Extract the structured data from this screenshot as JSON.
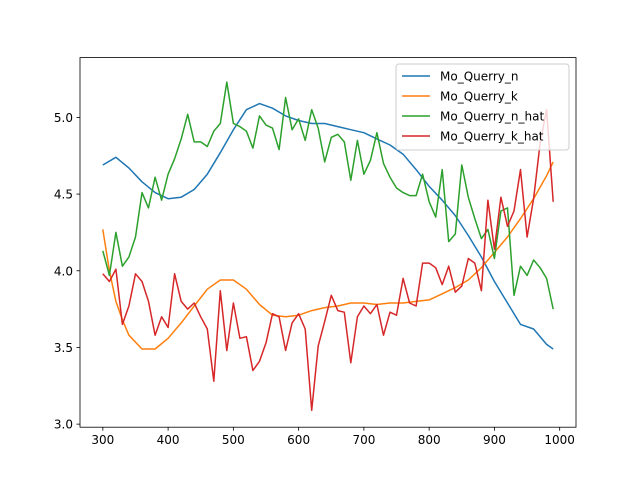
{
  "chart_data": {
    "type": "line",
    "title": "",
    "xlabel": "",
    "ylabel": "",
    "xlim": [
      265,
      1025
    ],
    "ylim": [
      2.98,
      5.39
    ],
    "xticks": [
      300,
      400,
      500,
      600,
      700,
      800,
      900,
      1000
    ],
    "yticks": [
      3.0,
      3.5,
      4.0,
      4.5,
      5.0
    ],
    "xtick_labels": [
      "300",
      "400",
      "500",
      "600",
      "700",
      "800",
      "900",
      "1000"
    ],
    "ytick_labels": [
      "3.0",
      "3.5",
      "4.0",
      "4.5",
      "5.0"
    ],
    "grid": false,
    "legend_position": "upper right",
    "series": [
      {
        "name": "Mo_Querry_n",
        "color": "#1f77b4",
        "x": [
          300,
          320,
          340,
          360,
          380,
          400,
          420,
          440,
          460,
          480,
          500,
          520,
          540,
          560,
          580,
          600,
          620,
          640,
          660,
          680,
          700,
          720,
          740,
          760,
          780,
          800,
          820,
          840,
          860,
          880,
          900,
          920,
          940,
          960,
          980,
          990
        ],
        "y": [
          4.69,
          4.74,
          4.67,
          4.58,
          4.51,
          4.47,
          4.48,
          4.53,
          4.63,
          4.77,
          4.92,
          5.05,
          5.09,
          5.06,
          5.01,
          4.98,
          4.96,
          4.96,
          4.94,
          4.92,
          4.9,
          4.86,
          4.82,
          4.76,
          4.66,
          4.55,
          4.46,
          4.36,
          4.23,
          4.09,
          3.93,
          3.79,
          3.65,
          3.62,
          3.52,
          3.49
        ]
      },
      {
        "name": "Mo_Querry_k",
        "color": "#ff7f0e",
        "x": [
          300,
          310,
          320,
          330,
          340,
          360,
          380,
          400,
          420,
          440,
          460,
          480,
          500,
          520,
          540,
          560,
          580,
          600,
          620,
          640,
          660,
          680,
          700,
          720,
          740,
          760,
          780,
          800,
          820,
          840,
          860,
          880,
          900,
          920,
          940,
          960,
          980,
          990
        ],
        "y": [
          4.27,
          4.0,
          3.8,
          3.68,
          3.58,
          3.49,
          3.49,
          3.56,
          3.66,
          3.77,
          3.88,
          3.94,
          3.94,
          3.88,
          3.78,
          3.71,
          3.7,
          3.71,
          3.74,
          3.76,
          3.77,
          3.79,
          3.79,
          3.78,
          3.79,
          3.79,
          3.8,
          3.81,
          3.85,
          3.89,
          3.94,
          4.02,
          4.12,
          4.22,
          4.34,
          4.47,
          4.62,
          4.71
        ]
      },
      {
        "name": "Mo_Querry_n_hat",
        "color": "#2ca02c",
        "x": [
          300,
          310,
          320,
          330,
          340,
          350,
          360,
          370,
          380,
          390,
          400,
          410,
          420,
          430,
          440,
          450,
          460,
          470,
          480,
          490,
          500,
          510,
          520,
          530,
          540,
          550,
          560,
          570,
          580,
          590,
          600,
          610,
          620,
          630,
          640,
          650,
          660,
          670,
          680,
          690,
          700,
          710,
          720,
          730,
          740,
          750,
          760,
          770,
          780,
          790,
          800,
          810,
          820,
          830,
          840,
          850,
          860,
          870,
          880,
          890,
          900,
          910,
          920,
          930,
          940,
          950,
          960,
          970,
          980,
          990
        ],
        "y": [
          4.13,
          3.97,
          4.25,
          4.03,
          4.09,
          4.22,
          4.51,
          4.41,
          4.61,
          4.46,
          4.63,
          4.73,
          4.86,
          5.02,
          4.84,
          4.84,
          4.81,
          4.91,
          4.96,
          5.23,
          4.96,
          4.94,
          4.91,
          4.8,
          5.01,
          4.95,
          4.93,
          4.79,
          5.13,
          4.92,
          4.99,
          4.85,
          5.05,
          4.93,
          4.71,
          4.87,
          4.89,
          4.84,
          4.59,
          4.85,
          4.63,
          4.72,
          4.9,
          4.7,
          4.61,
          4.54,
          4.51,
          4.49,
          4.49,
          4.63,
          4.45,
          4.35,
          4.66,
          4.19,
          4.24,
          4.69,
          4.48,
          4.34,
          4.21,
          4.27,
          4.08,
          4.39,
          4.41,
          3.84,
          4.03,
          3.97,
          4.07,
          4.02,
          3.95,
          3.75
        ]
      },
      {
        "name": "Mo_Querry_k_hat",
        "color": "#d62728",
        "x": [
          300,
          310,
          320,
          330,
          340,
          350,
          360,
          370,
          380,
          390,
          400,
          410,
          420,
          430,
          440,
          450,
          460,
          470,
          480,
          490,
          500,
          510,
          520,
          530,
          540,
          550,
          560,
          570,
          580,
          590,
          600,
          610,
          620,
          630,
          640,
          650,
          660,
          670,
          680,
          690,
          700,
          710,
          720,
          730,
          740,
          750,
          760,
          770,
          780,
          790,
          800,
          810,
          820,
          830,
          840,
          850,
          860,
          870,
          880,
          890,
          900,
          910,
          920,
          930,
          940,
          950,
          960,
          970,
          980,
          990
        ],
        "y": [
          3.98,
          3.93,
          4.01,
          3.65,
          3.77,
          3.98,
          3.93,
          3.8,
          3.58,
          3.7,
          3.63,
          3.98,
          3.8,
          3.75,
          3.79,
          3.7,
          3.62,
          3.28,
          3.87,
          3.48,
          3.79,
          3.56,
          3.57,
          3.35,
          3.41,
          3.53,
          3.72,
          3.7,
          3.48,
          3.66,
          3.72,
          3.62,
          3.09,
          3.51,
          3.67,
          3.84,
          3.74,
          3.73,
          3.4,
          3.7,
          3.77,
          3.72,
          3.78,
          3.58,
          3.73,
          3.71,
          3.95,
          3.79,
          3.77,
          4.05,
          4.05,
          4.02,
          3.91,
          4.03,
          3.86,
          3.9,
          4.08,
          4.05,
          3.87,
          4.46,
          4.14,
          4.48,
          4.29,
          4.39,
          4.66,
          4.22,
          4.47,
          4.83,
          5.05,
          4.45
        ]
      }
    ]
  }
}
